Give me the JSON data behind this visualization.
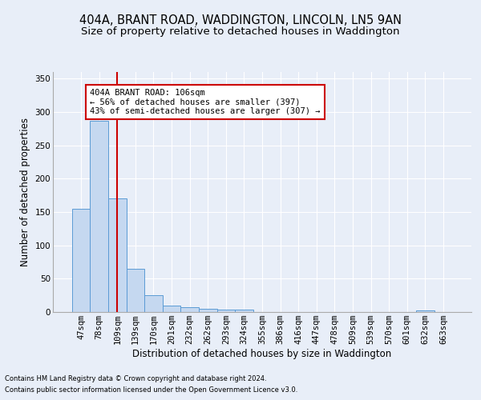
{
  "title1": "404A, BRANT ROAD, WADDINGTON, LINCOLN, LN5 9AN",
  "title2": "Size of property relative to detached houses in Waddington",
  "xlabel": "Distribution of detached houses by size in Waddington",
  "ylabel": "Number of detached properties",
  "categories": [
    "47sqm",
    "78sqm",
    "109sqm",
    "139sqm",
    "170sqm",
    "201sqm",
    "232sqm",
    "262sqm",
    "293sqm",
    "324sqm",
    "355sqm",
    "386sqm",
    "416sqm",
    "447sqm",
    "478sqm",
    "509sqm",
    "539sqm",
    "570sqm",
    "601sqm",
    "632sqm",
    "663sqm"
  ],
  "values": [
    155,
    287,
    170,
    65,
    25,
    10,
    7,
    5,
    4,
    4,
    0,
    0,
    0,
    0,
    0,
    0,
    0,
    0,
    0,
    3,
    0
  ],
  "bar_color": "#c5d8f0",
  "bar_edge_color": "#5b9bd5",
  "vline_x": 2,
  "vline_color": "#cc0000",
  "ylim": [
    0,
    360
  ],
  "yticks": [
    0,
    50,
    100,
    150,
    200,
    250,
    300,
    350
  ],
  "annotation_text": "404A BRANT ROAD: 106sqm\n← 56% of detached houses are smaller (397)\n43% of semi-detached houses are larger (307) →",
  "annotation_box_color": "#ffffff",
  "annotation_box_edge": "#cc0000",
  "footnote1": "Contains HM Land Registry data © Crown copyright and database right 2024.",
  "footnote2": "Contains public sector information licensed under the Open Government Licence v3.0.",
  "background_color": "#e8eef8",
  "grid_color": "#ffffff",
  "title1_fontsize": 10.5,
  "title2_fontsize": 9.5,
  "xlabel_fontsize": 8.5,
  "ylabel_fontsize": 8.5,
  "tick_fontsize": 7.5,
  "footnote_fontsize": 6.0
}
